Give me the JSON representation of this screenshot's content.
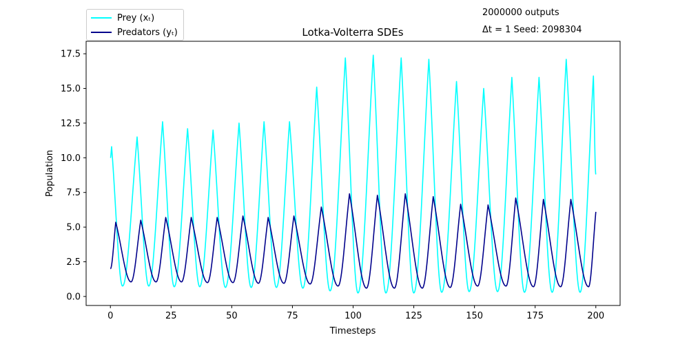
{
  "notes": {
    "outputs": "2000000 outputs",
    "params": "Δt = 1  Seed: 2098304"
  },
  "chart_data": {
    "type": "line",
    "title": "Lotka-Volterra SDEs",
    "xlabel": "Timesteps",
    "ylabel": "Population",
    "xlim": [
      -10,
      210
    ],
    "ylim": [
      -0.65,
      18.4
    ],
    "xticks": [
      0,
      25,
      50,
      75,
      100,
      125,
      150,
      175,
      200
    ],
    "yticks": [
      0.0,
      2.5,
      5.0,
      7.5,
      10.0,
      12.5,
      15.0,
      17.5
    ],
    "grid": false,
    "legend_position": "top-left, outside plot area",
    "series": [
      {
        "name": "Prey (xₜ)",
        "color": "#00ffff",
        "start": 10.0,
        "end": 8.8,
        "peaks": [
          [
            0.5,
            10.8
          ],
          [
            11.0,
            11.5
          ],
          [
            21.5,
            12.6
          ],
          [
            31.8,
            12.1
          ],
          [
            42.3,
            12.0
          ],
          [
            53.0,
            12.5
          ],
          [
            63.3,
            12.6
          ],
          [
            73.8,
            12.6
          ],
          [
            85.0,
            15.1
          ],
          [
            96.8,
            17.2
          ],
          [
            108.3,
            17.4
          ],
          [
            119.8,
            17.2
          ],
          [
            131.2,
            17.1
          ],
          [
            142.6,
            15.5
          ],
          [
            153.8,
            15.0
          ],
          [
            165.4,
            15.8
          ],
          [
            176.6,
            15.8
          ],
          [
            187.8,
            17.1
          ],
          [
            199.0,
            15.9
          ]
        ],
        "troughs": [
          [
            5.0,
            0.75
          ],
          [
            15.8,
            0.75
          ],
          [
            26.3,
            0.7
          ],
          [
            36.8,
            0.7
          ],
          [
            47.4,
            0.65
          ],
          [
            58.0,
            0.65
          ],
          [
            68.4,
            0.65
          ],
          [
            79.3,
            0.6
          ],
          [
            90.5,
            0.4
          ],
          [
            102.0,
            0.25
          ],
          [
            113.5,
            0.25
          ],
          [
            125.0,
            0.25
          ],
          [
            136.5,
            0.3
          ],
          [
            147.8,
            0.35
          ],
          [
            159.5,
            0.35
          ],
          [
            170.6,
            0.3
          ],
          [
            182.0,
            0.3
          ],
          [
            193.5,
            0.3
          ]
        ]
      },
      {
        "name": "Predators (yₜ)",
        "color": "#00008b",
        "start": 2.0,
        "end": 6.1,
        "peaks": [
          [
            2.2,
            5.35
          ],
          [
            12.5,
            5.5
          ],
          [
            22.8,
            5.7
          ],
          [
            33.3,
            5.7
          ],
          [
            44.0,
            5.7
          ],
          [
            54.6,
            5.8
          ],
          [
            65.0,
            5.7
          ],
          [
            75.6,
            5.8
          ],
          [
            86.9,
            6.45
          ],
          [
            98.5,
            7.4
          ],
          [
            110.0,
            7.3
          ],
          [
            121.5,
            7.4
          ],
          [
            133.0,
            7.2
          ],
          [
            144.3,
            6.65
          ],
          [
            155.6,
            6.6
          ],
          [
            167.0,
            7.1
          ],
          [
            178.4,
            7.0
          ],
          [
            189.7,
            7.0
          ]
        ],
        "troughs": [
          [
            8.5,
            1.05
          ],
          [
            18.8,
            1.05
          ],
          [
            29.3,
            1.05
          ],
          [
            40.0,
            1.0
          ],
          [
            50.5,
            1.0
          ],
          [
            61.0,
            0.95
          ],
          [
            71.5,
            0.95
          ],
          [
            82.3,
            0.9
          ],
          [
            93.8,
            0.75
          ],
          [
            105.5,
            0.6
          ],
          [
            117.0,
            0.6
          ],
          [
            128.5,
            0.6
          ],
          [
            140.0,
            0.65
          ],
          [
            151.3,
            0.75
          ],
          [
            163.0,
            0.75
          ],
          [
            174.3,
            0.7
          ],
          [
            185.5,
            0.7
          ],
          [
            197.0,
            0.7
          ]
        ]
      }
    ]
  }
}
